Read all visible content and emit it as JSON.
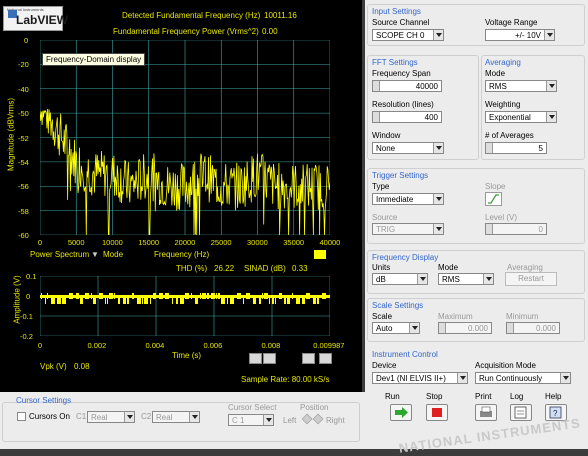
{
  "logo": {
    "text": "LabVIEW",
    "tag": "National Instruments"
  },
  "readouts": {
    "fund_freq_label": "Detected Fundamental Frequency (Hz)",
    "fund_freq_value": "10011.16",
    "fund_power_label": "Fundamental Frequency Power (Vrms^2)",
    "fund_power_value": "0.00"
  },
  "tooltip": "Frequency-Domain display",
  "spectrum": {
    "ylabel": "Magnitude (dBVrms)",
    "xlabel": "Frequency (Hz)",
    "yticks": [
      "0",
      "-20",
      "-40",
      "-50",
      "-52",
      "-54",
      "-56",
      "-58",
      "-60"
    ],
    "xticks": [
      "0",
      "5000",
      "10000",
      "15000",
      "20000",
      "25000",
      "30000",
      "35000",
      "40000"
    ],
    "legend_label": "Power Spectrum",
    "mode_label": "Mode",
    "color": "#ffff00"
  },
  "thd": {
    "label": "THD (%)",
    "value": "26.22",
    "sinad_label": "SINAD (dB)",
    "sinad_value": "0.33"
  },
  "timewave": {
    "ylabel": "Amplitude (V)",
    "xlabel": "Time (s)",
    "yticks": [
      "0.1",
      "0",
      "-0.1",
      "-0.2"
    ],
    "xticks": [
      "0",
      "0.002",
      "0.004",
      "0.006",
      "0.008",
      "0.009987"
    ]
  },
  "vpk": {
    "label": "Vpk (V)",
    "value": "0.08"
  },
  "sample_rate": "Sample Rate:  80.00 kS/s",
  "chart_data": [
    {
      "type": "line",
      "title": "",
      "xlabel": "Frequency (Hz)",
      "ylabel": "Magnitude (dBVrms)",
      "xlim": [
        0,
        40000
      ],
      "x": [
        0,
        1000,
        2000,
        3000,
        4000,
        5000,
        7500,
        10000,
        12500,
        15000,
        17500,
        20000,
        22500,
        25000,
        27500,
        30000,
        32500,
        35000,
        37500,
        40000
      ],
      "y": [
        -49,
        -50,
        -51,
        -52,
        -53,
        -54,
        -55,
        -55,
        -56,
        -55,
        -56,
        -56,
        -55,
        -56,
        -56,
        -55,
        -56,
        -56,
        -56,
        -56
      ],
      "series": [
        {
          "name": "Power Spectrum"
        }
      ]
    },
    {
      "type": "line",
      "title": "",
      "xlabel": "Time (s)",
      "ylabel": "Amplitude (V)",
      "xlim": [
        0,
        0.009987
      ],
      "ylim": [
        -0.2,
        0.1
      ],
      "y_range_observed": [
        -0.05,
        0.05
      ]
    }
  ],
  "input": {
    "title": "Input Settings",
    "channel_label": "Source Channel",
    "channel": "SCOPE CH 0",
    "range_label": "Voltage Range",
    "range": "+/- 10V"
  },
  "fft": {
    "title": "FFT Settings",
    "span_label": "Frequency Span",
    "span": "40000",
    "res_label": "Resolution (lines)",
    "res": "400",
    "window_label": "Window",
    "window": "None"
  },
  "avg": {
    "title": "Averaging",
    "mode_label": "Mode",
    "mode": "RMS",
    "weight_label": "Weighting",
    "weight": "Exponential",
    "count_label": "# of Averages",
    "count": "5"
  },
  "trigger": {
    "title": "Trigger Settings",
    "type_label": "Type",
    "type": "Immediate",
    "slope_label": "Slope",
    "source_label": "Source",
    "source": "TRIG",
    "level_label": "Level (V)",
    "level": "0"
  },
  "fdisp": {
    "title": "Frequency Display",
    "units_label": "Units",
    "units": "dB",
    "mode_label": "Mode",
    "mode": "RMS",
    "avg_label": "Averaging",
    "restart": "Restart"
  },
  "scale": {
    "title": "Scale Settings",
    "scale_label": "Scale",
    "scale": "Auto",
    "max_label": "Maximum",
    "max": "0.000",
    "min_label": "Minimum",
    "min": "0.000"
  },
  "inst": {
    "title": "Instrument Control",
    "device_label": "Device",
    "device": "Dev1 (NI ELVIS II+)",
    "acq_label": "Acquisition Mode",
    "acq": "Run Continuously"
  },
  "buttons": {
    "run": "Run",
    "stop": "Stop",
    "print": "Print",
    "log": "Log",
    "help": "Help"
  },
  "cursor": {
    "title": "Cursor Settings",
    "on_label": "Cursors On",
    "c1": "C1",
    "c1_val": "Real",
    "c2": "C2",
    "c2_val": "Real",
    "select_label": "Cursor Select",
    "select": "C 1",
    "pos_label": "Position",
    "left": "Left",
    "right": "Right"
  },
  "watermark": "NATIONAL INSTRUMENTS"
}
